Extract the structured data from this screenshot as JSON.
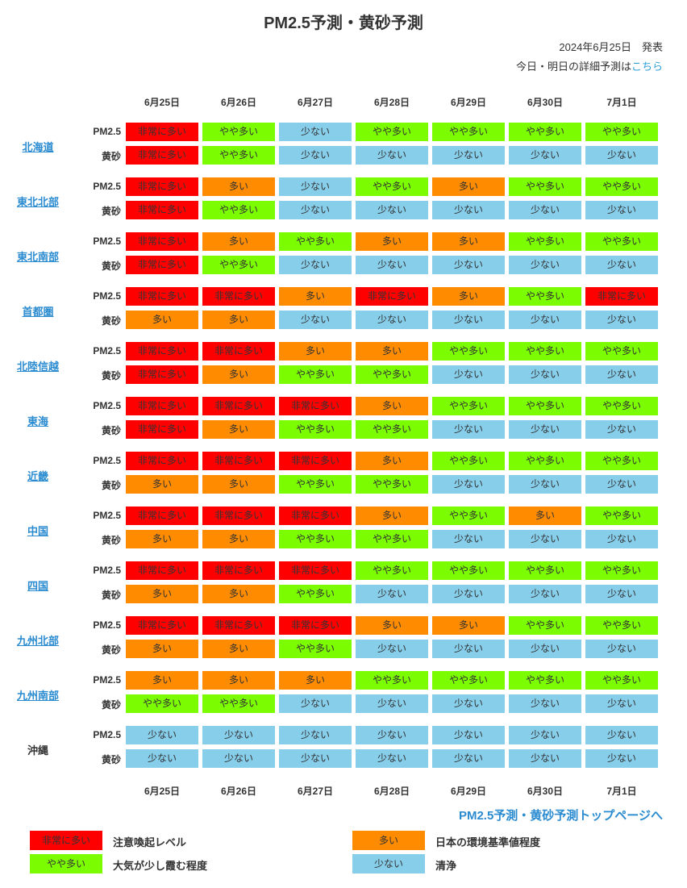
{
  "title": "PM2.5予測・黄砂予測",
  "issued": "2024年6月25日　発表",
  "detail_prefix": "今日・明日の詳細予測は",
  "detail_link": "こちら",
  "dates": [
    "6月25日",
    "6月26日",
    "6月27日",
    "6月28日",
    "6月29日",
    "6月30日",
    "7月1日"
  ],
  "row_labels": {
    "pm": "PM2.5",
    "kosa": "黄砂"
  },
  "level_labels": {
    "4": "非常に多い",
    "3": "多い",
    "2": "やや多い",
    "1": "少ない"
  },
  "level_colors": {
    "4": "#ff0000",
    "3": "#ff8c00",
    "2": "#7cfc00",
    "1": "#87ceeb"
  },
  "regions": [
    {
      "name": "北海道",
      "link": true,
      "pm": [
        4,
        2,
        1,
        2,
        2,
        2,
        2
      ],
      "kosa": [
        4,
        2,
        1,
        1,
        1,
        1,
        1
      ]
    },
    {
      "name": "東北北部",
      "link": true,
      "pm": [
        4,
        3,
        1,
        2,
        3,
        2,
        2
      ],
      "kosa": [
        4,
        2,
        1,
        1,
        1,
        1,
        1
      ]
    },
    {
      "name": "東北南部",
      "link": true,
      "pm": [
        4,
        3,
        2,
        3,
        3,
        2,
        2
      ],
      "kosa": [
        4,
        2,
        1,
        1,
        1,
        1,
        1
      ]
    },
    {
      "name": "首都圏",
      "link": true,
      "pm": [
        4,
        4,
        3,
        4,
        3,
        2,
        4
      ],
      "kosa": [
        3,
        3,
        1,
        1,
        1,
        1,
        1
      ]
    },
    {
      "name": "北陸信越",
      "link": true,
      "pm": [
        4,
        4,
        3,
        3,
        2,
        2,
        2
      ],
      "kosa": [
        4,
        3,
        2,
        2,
        1,
        1,
        1
      ]
    },
    {
      "name": "東海",
      "link": true,
      "pm": [
        4,
        4,
        4,
        3,
        2,
        2,
        2
      ],
      "kosa": [
        4,
        3,
        2,
        2,
        1,
        1,
        1
      ]
    },
    {
      "name": "近畿",
      "link": true,
      "pm": [
        4,
        4,
        4,
        3,
        2,
        2,
        2
      ],
      "kosa": [
        3,
        3,
        2,
        2,
        1,
        1,
        1
      ]
    },
    {
      "name": "中国",
      "link": true,
      "pm": [
        4,
        4,
        4,
        3,
        2,
        3,
        2
      ],
      "kosa": [
        3,
        3,
        2,
        2,
        1,
        1,
        1
      ]
    },
    {
      "name": "四国",
      "link": true,
      "pm": [
        4,
        4,
        4,
        2,
        2,
        2,
        2
      ],
      "kosa": [
        3,
        3,
        2,
        1,
        1,
        1,
        1
      ]
    },
    {
      "name": "九州北部",
      "link": true,
      "pm": [
        4,
        4,
        4,
        3,
        3,
        2,
        2
      ],
      "kosa": [
        3,
        3,
        2,
        1,
        1,
        1,
        1
      ]
    },
    {
      "name": "九州南部",
      "link": true,
      "pm": [
        3,
        3,
        3,
        2,
        2,
        2,
        2
      ],
      "kosa": [
        2,
        2,
        1,
        1,
        1,
        1,
        1
      ]
    },
    {
      "name": "沖縄",
      "link": false,
      "pm": [
        1,
        1,
        1,
        1,
        1,
        1,
        1
      ],
      "kosa": [
        1,
        1,
        1,
        1,
        1,
        1,
        1
      ]
    }
  ],
  "top_link": "PM2.5予測・黄砂予測トップページへ",
  "legend": [
    {
      "level": "4",
      "text": "注意喚起レベル"
    },
    {
      "level": "3",
      "text": "日本の環境基準値程度"
    },
    {
      "level": "2",
      "text": "大気が少し霞む程度"
    },
    {
      "level": "1",
      "text": "清浄"
    }
  ]
}
